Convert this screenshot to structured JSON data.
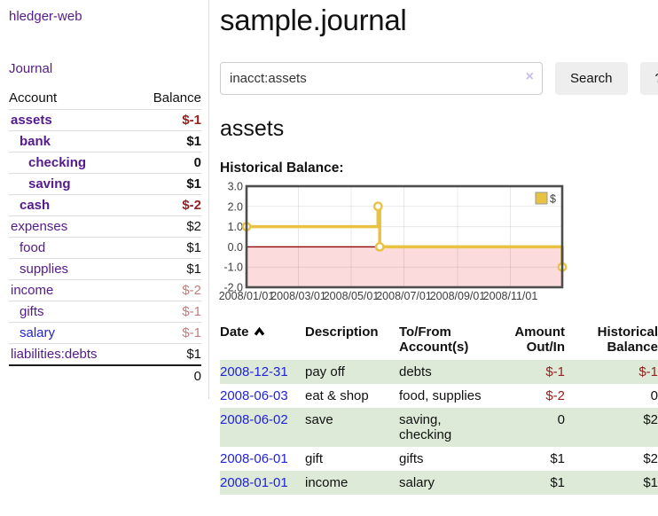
{
  "colors": {
    "link_purple": "#551A8B",
    "link_blue": "#2222DD",
    "negative": "#952020",
    "negative_soft": "#BF7D7D",
    "row_stripe": "#DCEAD7",
    "button_bg": "#EEEEEE",
    "chart_line": "#E8C240",
    "chart_negative_bg": "#FBDBDB",
    "chart_zero_line": "#8B0000"
  },
  "app": {
    "title": "hledger-web"
  },
  "sidebar": {
    "journal_link": "Journal",
    "accounts": {
      "col_account": "Account",
      "col_balance": "Balance",
      "rows": [
        {
          "account": "assets",
          "balance": "$-1",
          "level": 1,
          "bold": true,
          "balance_class": "neg"
        },
        {
          "account": "bank",
          "balance": "$1",
          "level": 2,
          "bold": true,
          "balance_class": ""
        },
        {
          "account": "checking",
          "balance": "0",
          "level": 3,
          "bold": true,
          "balance_class": ""
        },
        {
          "account": "saving",
          "balance": "$1",
          "level": 3,
          "bold": true,
          "balance_class": ""
        },
        {
          "account": "cash",
          "balance": "$-2",
          "level": 2,
          "bold": true,
          "balance_class": "neg"
        },
        {
          "account": "expenses",
          "balance": "$2",
          "level": 1,
          "bold": false,
          "balance_class": ""
        },
        {
          "account": "food",
          "balance": "$1",
          "level": 2,
          "bold": false,
          "balance_class": ""
        },
        {
          "account": "supplies",
          "balance": "$1",
          "level": 2,
          "bold": false,
          "balance_class": ""
        },
        {
          "account": "income",
          "balance": "$-2",
          "level": 1,
          "bold": false,
          "balance_class": "neg-soft"
        },
        {
          "account": "gifts",
          "balance": "$-1",
          "level": 2,
          "bold": false,
          "balance_class": "neg-soft"
        },
        {
          "account": "salary",
          "balance": "$-1",
          "level": 2,
          "bold": false,
          "balance_class": "neg-soft",
          "link_color": "blue"
        },
        {
          "account": "liabilities:debts",
          "balance": "$1",
          "level": 1,
          "bold": false,
          "balance_class": ""
        }
      ],
      "total": "0"
    }
  },
  "main": {
    "page_title": "sample.journal",
    "search": {
      "value": "inacct:assets",
      "clear_icon": "×",
      "search_button": "Search",
      "help_button": "?"
    },
    "account_heading": "assets",
    "chart_title": "Historical Balance:",
    "register": {
      "headers": {
        "date": "Date",
        "description": "Description",
        "accounts": "To/From Account(s)",
        "amount": "Amount Out/In",
        "balance": "Historical Balance"
      },
      "rows": [
        {
          "date": "2008-12-31",
          "description": "pay off",
          "accounts": "debts",
          "amount": "$-1",
          "amount_class": "neg",
          "balance": "$-1",
          "balance_class": "neg"
        },
        {
          "date": "2008-06-03",
          "description": "eat & shop",
          "accounts": "food, supplies",
          "amount": "$-2",
          "amount_class": "neg",
          "balance": "0",
          "balance_class": ""
        },
        {
          "date": "2008-06-02",
          "description": "save",
          "accounts": "saving, checking",
          "amount": "0",
          "amount_class": "",
          "balance": "$2",
          "balance_class": ""
        },
        {
          "date": "2008-06-01",
          "description": "gift",
          "accounts": "gifts",
          "amount": "$1",
          "amount_class": "",
          "balance": "$2",
          "balance_class": ""
        },
        {
          "date": "2008-01-01",
          "description": "income",
          "accounts": "salary",
          "amount": "$1",
          "amount_class": "",
          "balance": "$1",
          "balance_class": ""
        }
      ]
    }
  },
  "chart_data": {
    "type": "line",
    "step": true,
    "title": "Historical Balance",
    "series": [
      {
        "name": "$",
        "points": [
          [
            "2008-01-01",
            1
          ],
          [
            "2008-06-01",
            2
          ],
          [
            "2008-06-03",
            0
          ],
          [
            "2008-12-31",
            -1
          ]
        ]
      }
    ],
    "x_range": [
      "2008-01-01",
      "2008-12-31"
    ],
    "ylim": [
      -2,
      3
    ],
    "yticks": [
      3,
      2,
      1,
      0,
      -1,
      -2
    ],
    "xticks": [
      {
        "date": "2008-01-01",
        "label": "2008/01/01"
      },
      {
        "date": "2008-03-01",
        "label": "2008/03/01"
      },
      {
        "date": "2008-05-01",
        "label": "2008/05/01"
      },
      {
        "date": "2008-07-01",
        "label": "2008/07/01"
      },
      {
        "date": "2008-09-01",
        "label": "2008/09/01"
      },
      {
        "date": "2008-11-01",
        "label": "2008/11/01"
      }
    ],
    "legend_position": "top-right",
    "grid": true,
    "negative_region_shaded": true
  }
}
